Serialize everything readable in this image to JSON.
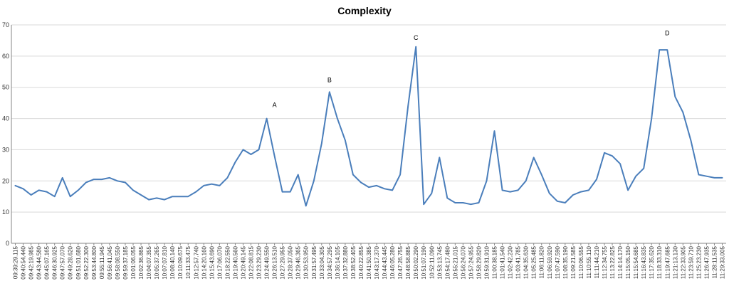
{
  "chart_data": {
    "type": "line",
    "title": "Complexity",
    "xlabel": "",
    "ylabel": "",
    "ylim": [
      0,
      70
    ],
    "yticks": [
      "0",
      "10",
      "20",
      "30",
      "40",
      "50",
      "60",
      "70"
    ],
    "grid": true,
    "legend": "none",
    "color": "#4a7ebb",
    "x": [
      "09:39:29.115",
      "09:40:54.440",
      "09:42:19.985",
      "09:43:44.580",
      "09:45:07.165",
      "09:46:30.925",
      "09:47:57.070",
      "09:49:28.620",
      "09:51:01.680",
      "09:52:22.300",
      "09:53:44.800",
      "09:55:11.945",
      "09:56:41.045",
      "09:58:08.550",
      "09:59:37.185",
      "10:01:06.055",
      "10:02:36.865",
      "10:04:07.355",
      "10:05:37.265",
      "10:07:07.810",
      "10:08:40.140",
      "10:10:09.675",
      "10:11:33.475",
      "10:12:57.740",
      "10:14:20.160",
      "10:15:43.690",
      "10:17:06.070",
      "10:18:22.550",
      "10:19:40.560",
      "10:20:49.145",
      "10:22:08.815",
      "10:23:29.230",
      "10:24:49.550",
      "10:26:13.510",
      "10:27:29.955",
      "10:28:37.050",
      "10:29:46.365",
      "10:30:53.950",
      "10:31:57.495",
      "10:33:04.305",
      "10:34:57.295",
      "10:36:14.105",
      "10:37:32.880",
      "10:38:52.405",
      "10:40:22.855",
      "10:41:50.385",
      "10:43:17.370",
      "10:44:43.445",
      "10:46:05.280",
      "10:47:26.755",
      "10:48:58.885",
      "10:50:02.290",
      "10:51:07.190",
      "10:52:11.090",
      "10:53:13.745",
      "10:54:17.480",
      "10:55:21.015",
      "10:56:24.070",
      "10:57:24.955",
      "10:58:29.820",
      "10:59:31.910",
      "11:00:38.185",
      "11:01:41.540",
      "11:02:42.230",
      "11:03:41.785",
      "11:04:35.630",
      "11:05:25.485",
      "11:06:11.820",
      "11:06:59.920",
      "11:07:47.590",
      "11:08:35.190",
      "11:09:21.585",
      "11:10:06.555",
      "11:10:55.110",
      "11:11:44.210",
      "11:12:34.755",
      "11:13:22.825",
      "11:14:14.170",
      "11:15:05.150",
      "11:15:54.685",
      "11:16:43.835",
      "11:17:35.620",
      "11:18:33.310",
      "11:19:47.685",
      "11:21:13.130",
      "11:22:33.905",
      "11:23:59.710",
      "11:25:23.230",
      "11:26:47.935",
      "11:28:11.535",
      "11:29:33.005"
    ],
    "values": [
      18.5,
      17.5,
      15.5,
      17.0,
      16.5,
      15.0,
      21.0,
      15.0,
      17.0,
      19.5,
      20.5,
      20.5,
      21.0,
      20.0,
      19.5,
      17.0,
      15.5,
      14.0,
      14.5,
      14.0,
      15.0,
      15.0,
      15.0,
      16.5,
      18.5,
      19.0,
      18.5,
      21.0,
      26.0,
      30.0,
      28.5,
      30.0,
      40.0,
      28.0,
      16.5,
      16.5,
      22.0,
      12.0,
      20.0,
      32.0,
      48.5,
      40.0,
      33.0,
      22.0,
      19.5,
      18.0,
      18.5,
      17.5,
      17.0,
      22.0,
      44.0,
      63.0,
      12.5,
      16.0,
      27.5,
      14.5,
      13.0,
      13.0,
      12.5,
      13.0,
      20.0,
      36.0,
      17.0,
      16.5,
      17.0,
      20.0,
      27.5,
      22.0,
      16.0,
      13.5,
      13.0,
      15.5,
      16.5,
      17.0,
      20.5,
      29.0,
      28.0,
      25.5,
      17.0,
      21.5,
      24.0,
      40.0,
      62.0,
      62.0,
      47.0,
      42.0,
      33.0,
      22.0,
      21.5,
      21.0,
      21.0
    ],
    "annotations": [
      {
        "label": "A",
        "x": "10:26:13.510",
        "y": 43
      },
      {
        "label": "B",
        "x": "10:34:57.295",
        "y": 51
      },
      {
        "label": "C",
        "x": "10:50:02.290",
        "y": 64.5
      },
      {
        "label": "D",
        "x": "11:19:47.685",
        "y": 66
      }
    ]
  }
}
